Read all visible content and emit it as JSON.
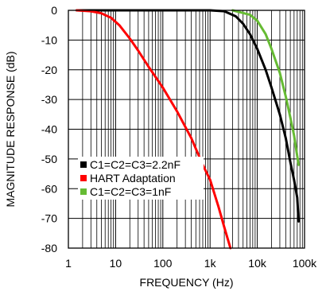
{
  "chart_data": {
    "type": "line",
    "xlabel": "FREQUENCY (Hz)",
    "ylabel": "MAGNITUDE RESPONSE (dB)",
    "x_scale": "log",
    "xlim": [
      1,
      100000
    ],
    "ylim": [
      -80,
      0
    ],
    "grid": true,
    "legend_position": "lower-left",
    "x_ticks": [
      {
        "value": 1,
        "label": "1"
      },
      {
        "value": 10,
        "label": "10"
      },
      {
        "value": 100,
        "label": "100"
      },
      {
        "value": 1000,
        "label": "1k"
      },
      {
        "value": 10000,
        "label": "10k"
      },
      {
        "value": 100000,
        "label": "100k"
      }
    ],
    "y_ticks": [
      {
        "value": 0,
        "label": "0"
      },
      {
        "value": -10,
        "label": "-10"
      },
      {
        "value": -20,
        "label": "-20"
      },
      {
        "value": -30,
        "label": "-30"
      },
      {
        "value": -40,
        "label": "-40"
      },
      {
        "value": -50,
        "label": "-50"
      },
      {
        "value": -60,
        "label": "-60"
      },
      {
        "value": -70,
        "label": "-70"
      },
      {
        "value": -80,
        "label": "-80"
      }
    ],
    "series": [
      {
        "name": "C1=C2=C3=2.2nF",
        "color": "#000000",
        "points": [
          [
            1.5,
            0
          ],
          [
            100,
            0
          ],
          [
            1000,
            0
          ],
          [
            2000,
            -0.3
          ],
          [
            3500,
            -2
          ],
          [
            5000,
            -4.5
          ],
          [
            7000,
            -8
          ],
          [
            10000,
            -13
          ],
          [
            15000,
            -20
          ],
          [
            20000,
            -26
          ],
          [
            30000,
            -35
          ],
          [
            40000,
            -43
          ],
          [
            50000,
            -51
          ],
          [
            60000,
            -57
          ],
          [
            70000,
            -63
          ],
          [
            75000,
            -71
          ]
        ]
      },
      {
        "name": "HART Adaptation",
        "color": "#ff0000",
        "points": [
          [
            1.5,
            0
          ],
          [
            3,
            -0.3
          ],
          [
            5,
            -1
          ],
          [
            8,
            -2.5
          ],
          [
            12,
            -5
          ],
          [
            20,
            -9.5
          ],
          [
            30,
            -13.5
          ],
          [
            50,
            -19
          ],
          [
            100,
            -26
          ],
          [
            200,
            -34
          ],
          [
            400,
            -43
          ],
          [
            700,
            -52
          ],
          [
            1000,
            -57
          ],
          [
            1500,
            -66
          ],
          [
            2000,
            -73
          ],
          [
            2700,
            -80
          ]
        ]
      },
      {
        "name": "C1=C2=C3=1nF",
        "color": "#66bb33",
        "points": [
          [
            3000,
            0
          ],
          [
            7000,
            -1.5
          ],
          [
            10000,
            -3.5
          ],
          [
            15000,
            -8
          ],
          [
            20000,
            -13
          ],
          [
            30000,
            -21
          ],
          [
            40000,
            -29
          ],
          [
            50000,
            -36
          ],
          [
            60000,
            -42
          ],
          [
            70000,
            -49
          ],
          [
            75000,
            -52
          ]
        ]
      }
    ]
  }
}
